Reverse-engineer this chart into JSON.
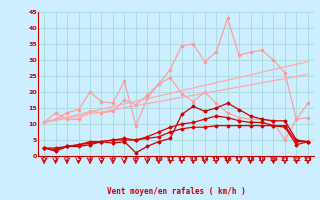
{
  "x": [
    0,
    1,
    2,
    3,
    4,
    5,
    6,
    7,
    8,
    9,
    10,
    11,
    12,
    13,
    14,
    15,
    16,
    17,
    18,
    19,
    20,
    21,
    22,
    23
  ],
  "line1": [
    10.5,
    13.5,
    11.5,
    11.5,
    14.0,
    13.5,
    14.0,
    17.5,
    16.0,
    19.0,
    22.5,
    27.0,
    34.5,
    35.0,
    29.5,
    32.5,
    43.0,
    31.5,
    32.5,
    33.0,
    30.0,
    26.0,
    11.5,
    16.5
  ],
  "line2": [
    10.5,
    11.5,
    13.5,
    14.5,
    20.0,
    17.0,
    16.5,
    23.5,
    9.5,
    18.0,
    22.5,
    24.5,
    19.5,
    17.0,
    20.0,
    16.5,
    13.5,
    12.0,
    11.5,
    11.5,
    10.5,
    5.0,
    11.5,
    12.0
  ],
  "line3_straight": [
    10.5,
    29.5
  ],
  "line3_x": [
    0,
    23
  ],
  "line4_straight": [
    10.5,
    25.5
  ],
  "line4_x": [
    0,
    23
  ],
  "line5": [
    2.5,
    1.5,
    3.0,
    3.0,
    3.5,
    4.5,
    4.0,
    4.5,
    1.0,
    3.0,
    4.5,
    5.5,
    13.0,
    15.5,
    14.0,
    15.0,
    16.5,
    14.5,
    12.5,
    11.5,
    11.0,
    11.0,
    5.0,
    4.5
  ],
  "line6": [
    2.5,
    2.0,
    3.0,
    3.5,
    4.5,
    4.5,
    5.0,
    5.0,
    5.0,
    5.5,
    6.0,
    7.5,
    8.5,
    9.0,
    9.0,
    9.5,
    9.5,
    9.5,
    9.5,
    9.5,
    9.5,
    9.5,
    4.5,
    4.5
  ],
  "line7": [
    2.5,
    2.5,
    3.0,
    3.5,
    4.0,
    4.5,
    5.0,
    5.5,
    5.0,
    6.0,
    7.5,
    9.0,
    10.0,
    10.5,
    11.5,
    12.5,
    12.0,
    11.0,
    10.5,
    10.5,
    9.5,
    9.0,
    3.5,
    4.5
  ],
  "bg_color": "#cceeff",
  "grid_color": "#aadddd",
  "line1_color": "#ff9999",
  "line2_color": "#ff9999",
  "line3_color": "#ffaaaa",
  "line4_color": "#ffaaaa",
  "line5_color": "#cc0000",
  "line6_color": "#dd0000",
  "line7_color": "#dd0000",
  "xlabel": "Vent moyen/en rafales ( km/h )",
  "axis_color": "#cc0000",
  "tick_color": "#cc0000",
  "label_color": "#cc0000",
  "ylim": [
    0,
    45
  ],
  "xlim": [
    -0.5,
    23.5
  ],
  "yticks": [
    0,
    5,
    10,
    15,
    20,
    25,
    30,
    35,
    40,
    45
  ],
  "xticks": [
    0,
    1,
    2,
    3,
    4,
    5,
    6,
    7,
    8,
    9,
    10,
    11,
    12,
    13,
    14,
    15,
    16,
    17,
    18,
    19,
    20,
    21,
    22,
    23
  ]
}
